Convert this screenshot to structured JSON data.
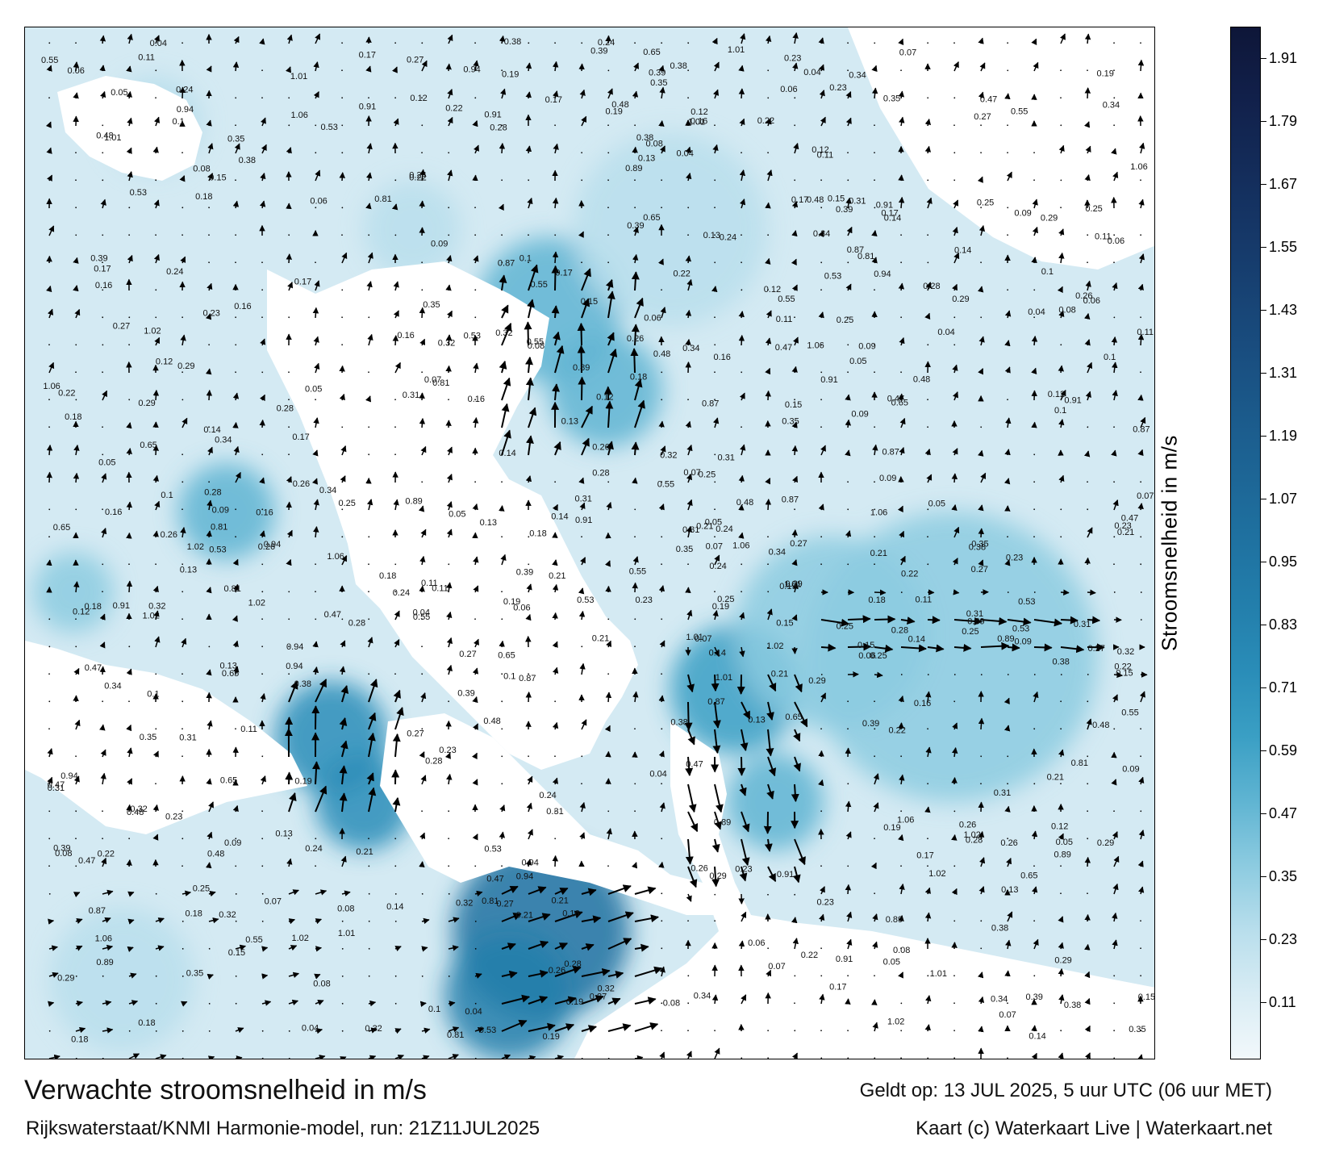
{
  "title": "Verwachte stroomsnelheid in m/s",
  "subtitle": "Rijkswaterstaat/KNMI Harmonie-model, run: 21Z11JUL2025",
  "valid_time": "Geldt op: 13 JUL 2025, 5 uur UTC (06 uur MET)",
  "credit": "Kaart (c) Waterkaart Live | Waterkaart.net",
  "colorbar": {
    "label": "Stroomsnelheid in m/s",
    "ticks": [
      "1.91",
      "1.79",
      "1.67",
      "1.55",
      "1.43",
      "1.31",
      "1.19",
      "1.07",
      "0.95",
      "0.83",
      "0.71",
      "0.59",
      "0.47",
      "0.35",
      "0.23",
      "0.11"
    ],
    "range": [
      0.0,
      1.97
    ],
    "colors": [
      "#f2f8fb",
      "#d8ecf4",
      "#b8deec",
      "#8ccbe0",
      "#5fb4d2",
      "#3a9fc4",
      "#2a8db8",
      "#237fac",
      "#1f72a1",
      "#1d6696",
      "#1b5a8b",
      "#194d7f",
      "#174172",
      "#153565",
      "#132a57",
      "#111f49",
      "#0e1638"
    ]
  },
  "sea_labels": [
    {
      "text": "0.65",
      "v": 0.65
    },
    {
      "text": "0.55",
      "v": 0.55
    },
    {
      "text": "0.53",
      "v": 0.53
    },
    {
      "text": "0.48",
      "v": 0.48
    },
    {
      "text": "0.47",
      "v": 0.47
    },
    {
      "text": "0.39",
      "v": 0.39
    },
    {
      "text": "0.38",
      "v": 0.38
    },
    {
      "text": "0.35",
      "v": 0.35
    },
    {
      "text": "0.34",
      "v": 0.34
    },
    {
      "text": "0.32",
      "v": 0.32
    },
    {
      "text": "0.31",
      "v": 0.31
    },
    {
      "text": "0.29",
      "v": 0.29
    },
    {
      "text": "0.28",
      "v": 0.28
    },
    {
      "text": "0.27",
      "v": 0.27
    },
    {
      "text": "0.26",
      "v": 0.26
    },
    {
      "text": "0.25",
      "v": 0.25
    },
    {
      "text": "0.24",
      "v": 0.24
    },
    {
      "text": "0.23",
      "v": 0.23
    },
    {
      "text": "0.22",
      "v": 0.22
    },
    {
      "text": "0.21",
      "v": 0.21
    },
    {
      "text": "0.19",
      "v": 0.19
    },
    {
      "text": "0.18",
      "v": 0.18
    },
    {
      "text": "0.17",
      "v": 0.17
    },
    {
      "text": "0.16",
      "v": 0.16
    },
    {
      "text": "0.15",
      "v": 0.15
    },
    {
      "text": "0.14",
      "v": 0.14
    },
    {
      "text": "0.13",
      "v": 0.13
    },
    {
      "text": "0.12",
      "v": 0.12
    },
    {
      "text": "0.11",
      "v": 0.11
    },
    {
      "text": "0.1",
      "v": 0.1
    },
    {
      "text": "0.09",
      "v": 0.09
    },
    {
      "text": "0.08",
      "v": 0.08
    },
    {
      "text": "0.07",
      "v": 0.07
    },
    {
      "text": "0.06",
      "v": 0.06
    },
    {
      "text": "0.05",
      "v": 0.05
    },
    {
      "text": "0.04",
      "v": 0.04
    },
    {
      "text": "0.94",
      "v": 0.94
    },
    {
      "text": "0.89",
      "v": 0.89
    },
    {
      "text": "0.87",
      "v": 0.87
    },
    {
      "text": "0.81",
      "v": 0.81
    },
    {
      "text": "1.06",
      "v": 1.06
    },
    {
      "text": "1.02",
      "v": 1.02
    },
    {
      "text": "1.01",
      "v": 1.01
    },
    {
      "text": "0.91",
      "v": 0.91
    }
  ]
}
